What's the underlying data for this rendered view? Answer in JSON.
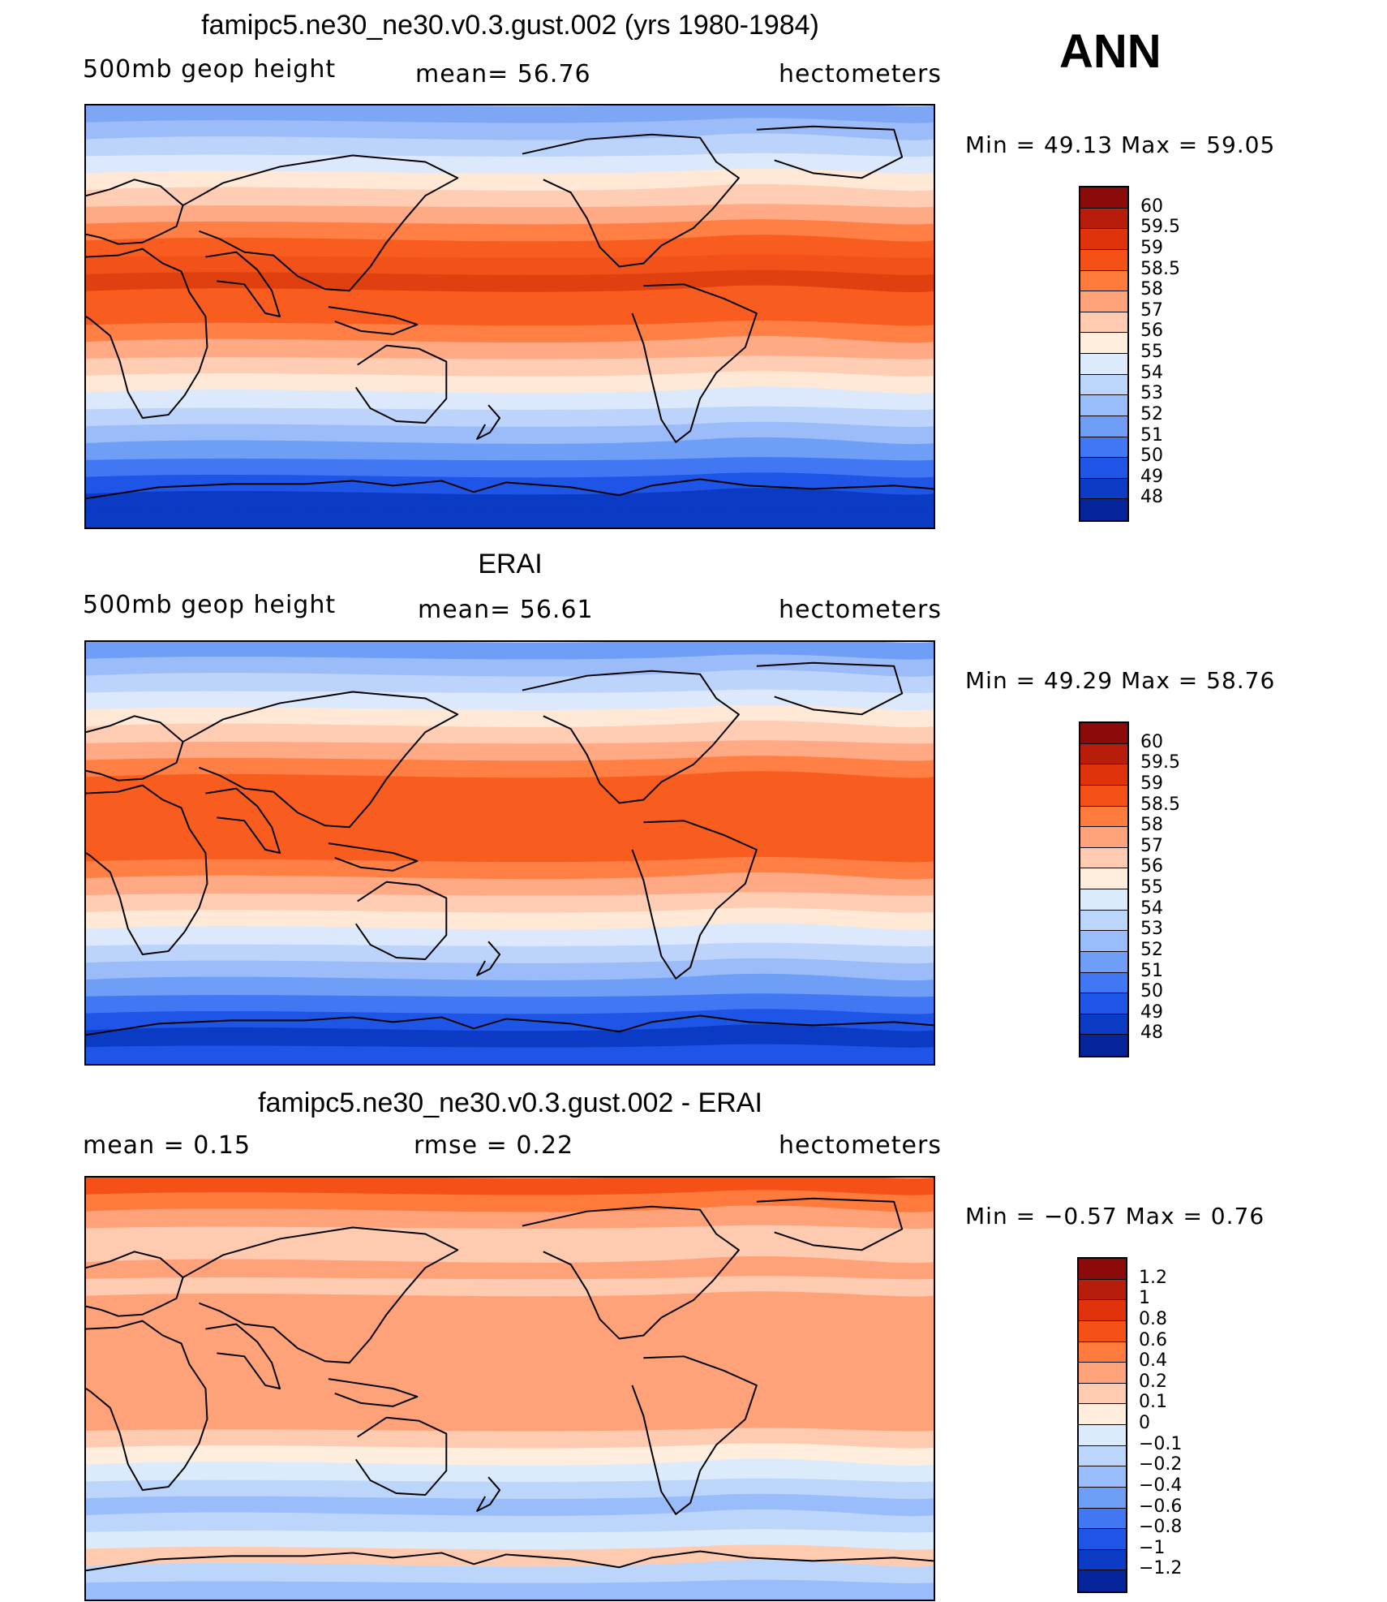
{
  "season": "ANN",
  "coast_color": "#000000",
  "panels": [
    {
      "id": "model",
      "title": "famipc5.ne30_ne30.v0.3.gust.002 (yrs 1980-1984)",
      "variable": "500mb geop height",
      "stat": "mean=   56.76",
      "units": "hectometers",
      "minmax": "Min =   49.13  Max =   59.05",
      "colorbar": {
        "labels": [
          "60",
          "59.5",
          "59",
          "58.5",
          "58",
          "57",
          "56",
          "55",
          "54",
          "53",
          "52",
          "51",
          "50",
          "49",
          "48"
        ],
        "colors": [
          "#8b0a0a",
          "#b81d0b",
          "#e0330c",
          "#f55016",
          "#ff7a3d",
          "#ffa27a",
          "#ffcbb0",
          "#ffeedd",
          "#dcebfb",
          "#bcd6fb",
          "#98bdfa",
          "#6f9ef7",
          "#4277f4",
          "#1f55e6",
          "#0b3bc4",
          "#06249a"
        ]
      },
      "bands": [
        "#7da7f5",
        "#9bbcf8",
        "#bcd3fb",
        "#dce8fb",
        "#ffe9d6",
        "#ffcdb3",
        "#ffa985",
        "#ff7f45",
        "#f85c1e",
        "#f2521a",
        "#e0400f",
        "#f85c1e",
        "#f85c1e",
        "#ff7f45",
        "#ffa985",
        "#ffcdb3",
        "#ffe9d6",
        "#dce8fb",
        "#bcd3fb",
        "#9bbcf8",
        "#6f9ef7",
        "#4277f4",
        "#1f55e6",
        "#0b3bc4",
        "#0b3bc4"
      ]
    },
    {
      "id": "obs",
      "title": "ERAI",
      "variable": "500mb geop height",
      "stat": "mean=   56.61",
      "units": "hectometers",
      "minmax": "Min =   49.29  Max =   58.76",
      "colorbar": {
        "labels": [
          "60",
          "59.5",
          "59",
          "58.5",
          "58",
          "57",
          "56",
          "55",
          "54",
          "53",
          "52",
          "51",
          "50",
          "49",
          "48"
        ],
        "colors": [
          "#8b0a0a",
          "#b81d0b",
          "#e0330c",
          "#f55016",
          "#ff7a3d",
          "#ffa27a",
          "#ffcbb0",
          "#ffeedd",
          "#dcebfb",
          "#bcd6fb",
          "#98bdfa",
          "#6f9ef7",
          "#4277f4",
          "#1f55e6",
          "#0b3bc4",
          "#06249a"
        ]
      },
      "bands": [
        "#6f9ef7",
        "#9bbcf8",
        "#bcd3fb",
        "#dce8fb",
        "#ffe9d6",
        "#ffcdb3",
        "#ffa985",
        "#ff7f45",
        "#f85c1e",
        "#f85c1e",
        "#f85c1e",
        "#f85c1e",
        "#f85c1e",
        "#ff7f45",
        "#ffa985",
        "#ffcdb3",
        "#ffe9d6",
        "#dce8fb",
        "#bcd3fb",
        "#9bbcf8",
        "#6f9ef7",
        "#4277f4",
        "#1f55e6",
        "#0b3bc4",
        "#1f55e6"
      ]
    },
    {
      "id": "diff",
      "title": "famipc5.ne30_ne30.v0.3.gust.002 - ERAI",
      "variable": "mean =     0.15",
      "stat": "rmse =     0.22",
      "units": "hectometers",
      "minmax": "Min =  −0.57  Max =     0.76",
      "colorbar": {
        "labels": [
          "1.2",
          "1",
          "0.8",
          "0.6",
          "0.4",
          "0.2",
          "0.1",
          "0",
          "−0.1",
          "−0.2",
          "−0.4",
          "−0.6",
          "−0.8",
          "−1",
          "−1.2"
        ],
        "colors": [
          "#8b0a0a",
          "#b81d0b",
          "#e0330c",
          "#f55016",
          "#ff7a3d",
          "#ffa27a",
          "#ffcbb0",
          "#ffeedd",
          "#dcebfb",
          "#bcd6fb",
          "#98bdfa",
          "#6f9ef7",
          "#4277f4",
          "#1f55e6",
          "#0b3bc4",
          "#06249a"
        ]
      },
      "bands": [
        "#f55016",
        "#ff7a3d",
        "#ffa27a",
        "#ffcbb0",
        "#ffcbb0",
        "#ffa27a",
        "#ffcbb0",
        "#ffa27a",
        "#ffa27a",
        "#ffa27a",
        "#ffa27a",
        "#ffa27a",
        "#ffa27a",
        "#ffa27a",
        "#ffa27a",
        "#ffcbb0",
        "#ffeedd",
        "#dcebfb",
        "#bcd6fb",
        "#98bdfa",
        "#bcd6fb",
        "#dcebfb",
        "#ffcbb0",
        "#bcd6fb",
        "#98bdfa"
      ]
    }
  ]
}
